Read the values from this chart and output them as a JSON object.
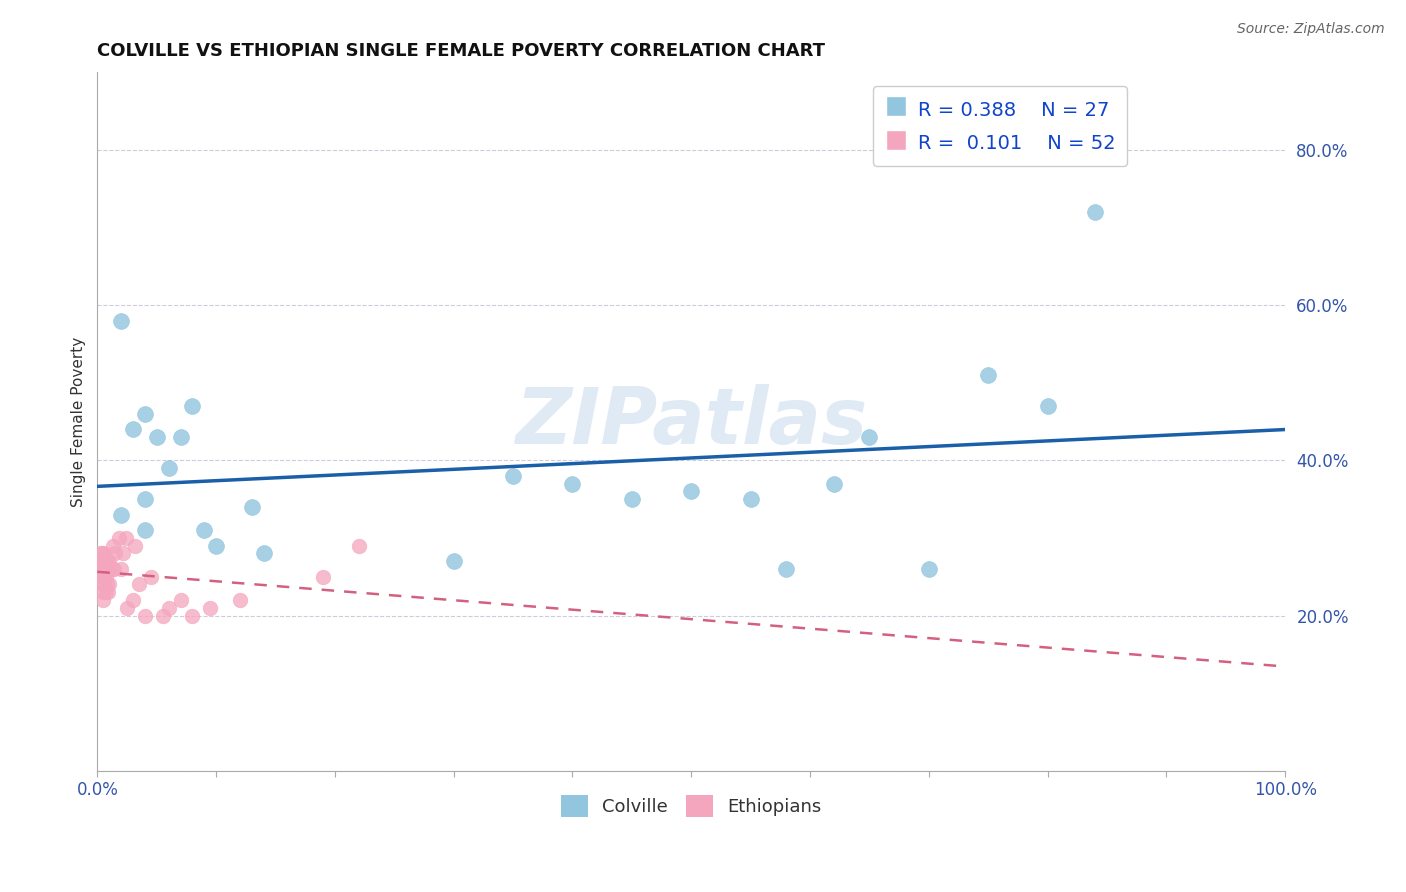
{
  "title": "COLVILLE VS ETHIOPIAN SINGLE FEMALE POVERTY CORRELATION CHART",
  "source": "Source: ZipAtlas.com",
  "ylabel": "Single Female Poverty",
  "xlim": [
    0.0,
    1.0
  ],
  "ylim": [
    0.0,
    0.9
  ],
  "legend_r_colville": "R = 0.388",
  "legend_n_colville": "N = 27",
  "legend_r_ethiopian": "R =  0.101",
  "legend_n_ethiopian": "N = 52",
  "colville_color": "#92c5de",
  "ethiopian_color": "#f4a6be",
  "colville_line_color": "#1a5fa8",
  "ethiopian_line_color": "#d46080",
  "watermark": "ZIPatlas",
  "colville_x": [
    0.02,
    0.02,
    0.03,
    0.04,
    0.04,
    0.04,
    0.05,
    0.06,
    0.07,
    0.08,
    0.09,
    0.1,
    0.13,
    0.14,
    0.3,
    0.35,
    0.4,
    0.45,
    0.5,
    0.55,
    0.58,
    0.62,
    0.65,
    0.7,
    0.75,
    0.8,
    0.84
  ],
  "colville_y": [
    0.58,
    0.33,
    0.44,
    0.46,
    0.35,
    0.31,
    0.43,
    0.39,
    0.43,
    0.47,
    0.31,
    0.29,
    0.34,
    0.28,
    0.27,
    0.38,
    0.37,
    0.35,
    0.36,
    0.35,
    0.26,
    0.37,
    0.43,
    0.26,
    0.51,
    0.47,
    0.72
  ],
  "ethiopian_x": [
    0.002,
    0.002,
    0.003,
    0.003,
    0.003,
    0.004,
    0.004,
    0.004,
    0.004,
    0.004,
    0.005,
    0.005,
    0.005,
    0.005,
    0.005,
    0.005,
    0.005,
    0.005,
    0.006,
    0.006,
    0.007,
    0.007,
    0.007,
    0.007,
    0.008,
    0.008,
    0.009,
    0.009,
    0.01,
    0.01,
    0.012,
    0.013,
    0.014,
    0.015,
    0.018,
    0.02,
    0.022,
    0.024,
    0.025,
    0.03,
    0.032,
    0.035,
    0.04,
    0.045,
    0.055,
    0.06,
    0.07,
    0.08,
    0.095,
    0.12,
    0.19,
    0.22
  ],
  "ethiopian_y": [
    0.27,
    0.27,
    0.26,
    0.27,
    0.28,
    0.25,
    0.26,
    0.27,
    0.27,
    0.28,
    0.22,
    0.23,
    0.24,
    0.25,
    0.26,
    0.26,
    0.27,
    0.28,
    0.24,
    0.27,
    0.23,
    0.25,
    0.26,
    0.27,
    0.24,
    0.27,
    0.23,
    0.26,
    0.24,
    0.27,
    0.26,
    0.29,
    0.26,
    0.28,
    0.3,
    0.26,
    0.28,
    0.3,
    0.21,
    0.22,
    0.29,
    0.24,
    0.2,
    0.25,
    0.2,
    0.21,
    0.22,
    0.2,
    0.21,
    0.22,
    0.25,
    0.29
  ],
  "grid_color": "#ccccdd",
  "background_color": "#ffffff",
  "title_fontsize": 13,
  "label_fontsize": 11,
  "tick_fontsize": 12,
  "legend_fontsize": 14
}
